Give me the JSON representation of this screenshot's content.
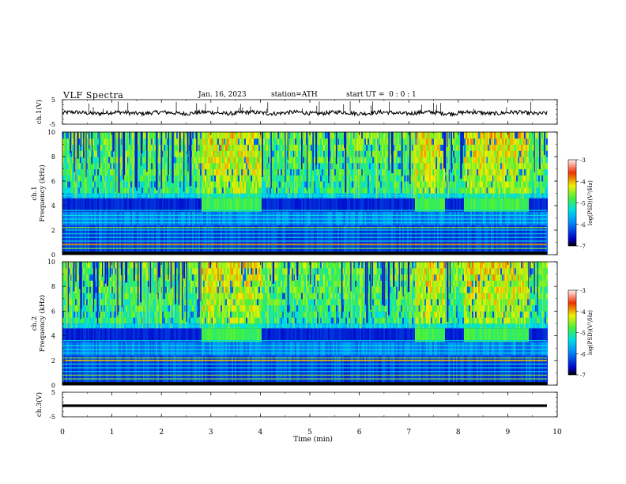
{
  "header": {
    "title": "VLF Spectra",
    "date": "Jan. 16, 2023",
    "station": "station=ATH",
    "start": "start UT =  0 : 0 : 1"
  },
  "chart_data": [
    {
      "type": "line",
      "panel": "waveform",
      "ylabel": "ch.1(V)",
      "ylim": [
        -5,
        5
      ],
      "yticks": [
        "5",
        "-5"
      ],
      "x_range_min": [
        0,
        9.8
      ],
      "series": [
        {
          "values_approx": "noisy trace near -0.5 V, amplitude ~ +-0.8 V, occasional spikes up to +3 V"
        }
      ]
    },
    {
      "type": "heatmap",
      "panel": "spectrogram",
      "ylabel": "ch.1\nFrequency (kHz)",
      "ylim": [
        0,
        10
      ],
      "yticks": [
        "0",
        "2",
        "4",
        "6",
        "8",
        "10"
      ],
      "colorbar": {
        "label": "log(PSD)(V²/Hz)",
        "ticks": [
          "-3",
          "-4",
          "-5",
          "-6",
          "-7"
        ],
        "range": [
          -7,
          -3
        ]
      },
      "bright_band_intervals_min": [
        [
          2.8,
          4.0
        ],
        [
          7.1,
          7.7
        ],
        [
          8.1,
          9.4
        ]
      ],
      "bright_band_khz": [
        3.5,
        4.5
      ]
    },
    {
      "type": "heatmap",
      "panel": "spectrogram",
      "ylabel": "ch.2\nFrequency (kHz)",
      "ylim": [
        0,
        10
      ],
      "yticks": [
        "0",
        "2",
        "4",
        "6",
        "8",
        "10"
      ],
      "colorbar": {
        "label": "log(PSD)(V²/Hz)",
        "ticks": [
          "-3",
          "-4",
          "-5",
          "-6",
          "-7"
        ],
        "range": [
          -7,
          -3
        ]
      },
      "bright_band_intervals_min": [
        [
          2.8,
          4.0
        ],
        [
          7.1,
          7.7
        ],
        [
          8.1,
          9.4
        ]
      ],
      "bright_band_khz": [
        3.5,
        4.5
      ]
    },
    {
      "type": "line",
      "panel": "waveform",
      "ylabel": "ch.3(V)",
      "ylim": [
        -5,
        5
      ],
      "yticks": [
        "5",
        "-5"
      ],
      "series": [
        {
          "values_approx": "flat line at -0.5 V"
        }
      ]
    }
  ],
  "x_axis": {
    "label": "Time (min)",
    "ticks": [
      "0",
      "1",
      "2",
      "3",
      "4",
      "5",
      "6",
      "7",
      "8",
      "9",
      "10"
    ],
    "range": [
      0,
      10
    ]
  },
  "colors": {
    "spec_bg": "#1a3fbf",
    "band": "#6cf03a",
    "noise": "#30d0e0"
  }
}
